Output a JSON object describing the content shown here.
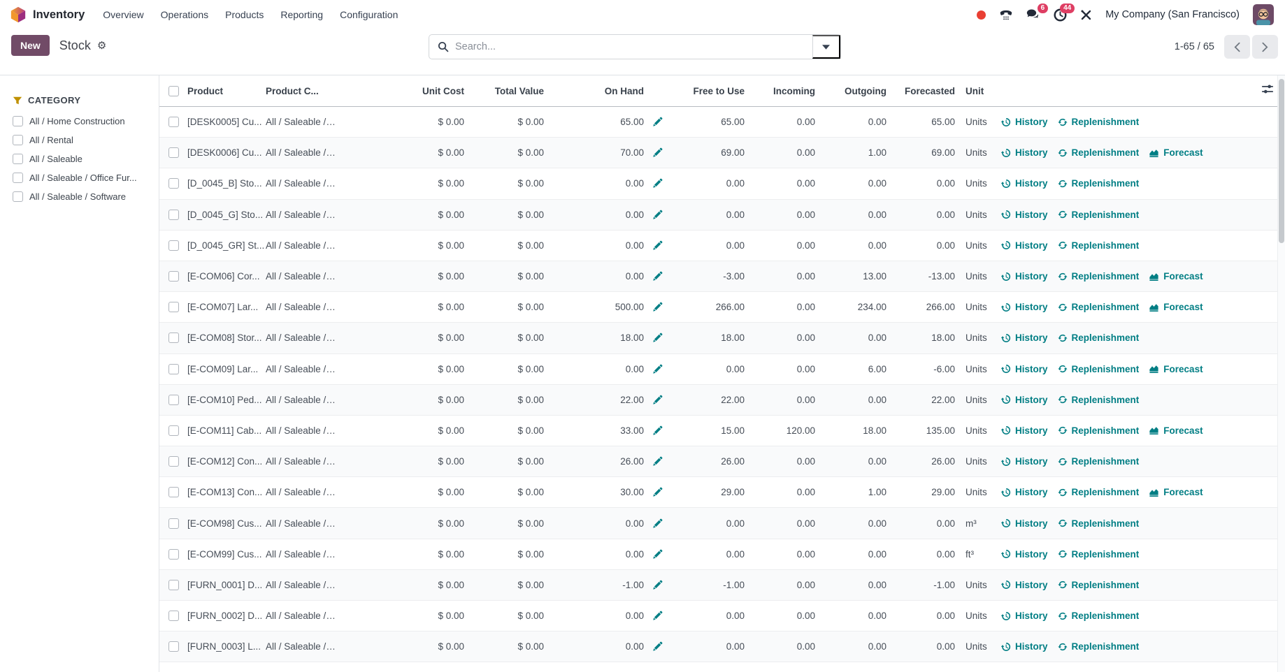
{
  "nav": {
    "app_name": "Inventory",
    "menus": [
      "Overview",
      "Operations",
      "Products",
      "Reporting",
      "Configuration"
    ],
    "company": "My Company (San Francisco)",
    "badges": {
      "messages": "6",
      "activities": "44"
    }
  },
  "control": {
    "new_label": "New",
    "title": "Stock",
    "search_placeholder": "Search...",
    "pager": "1-65 / 65"
  },
  "sidebar": {
    "title": "CATEGORY",
    "items": [
      "All / Home Construction",
      "All / Rental",
      "All / Saleable",
      "All / Saleable / Office Fur...",
      "All / Saleable / Software"
    ]
  },
  "table": {
    "headers": [
      "Product",
      "Product C...",
      "Unit Cost",
      "Total Value",
      "On Hand",
      "Free to Use",
      "Incoming",
      "Outgoing",
      "Forecasted",
      "Unit"
    ],
    "action_labels": {
      "history": "History",
      "replenishment": "Replenishment",
      "forecast": "Forecast"
    },
    "rows": [
      {
        "product": "[DESK0005] Cu...",
        "category": "All / Saleable / ...",
        "unit_cost": "$ 0.00",
        "total_value": "$ 0.00",
        "on_hand": "65.00",
        "free_to_use": "65.00",
        "incoming": "0.00",
        "outgoing": "0.00",
        "forecasted": "65.00",
        "unit": "Units",
        "forecast": false
      },
      {
        "product": "[DESK0006] Cu...",
        "category": "All / Saleable / ...",
        "unit_cost": "$ 0.00",
        "total_value": "$ 0.00",
        "on_hand": "70.00",
        "free_to_use": "69.00",
        "incoming": "0.00",
        "outgoing": "1.00",
        "forecasted": "69.00",
        "unit": "Units",
        "forecast": true
      },
      {
        "product": "[D_0045_B] Sto...",
        "category": "All / Saleable / ...",
        "unit_cost": "$ 0.00",
        "total_value": "$ 0.00",
        "on_hand": "0.00",
        "free_to_use": "0.00",
        "incoming": "0.00",
        "outgoing": "0.00",
        "forecasted": "0.00",
        "unit": "Units",
        "forecast": false
      },
      {
        "product": "[D_0045_G] Sto...",
        "category": "All / Saleable / ...",
        "unit_cost": "$ 0.00",
        "total_value": "$ 0.00",
        "on_hand": "0.00",
        "free_to_use": "0.00",
        "incoming": "0.00",
        "outgoing": "0.00",
        "forecasted": "0.00",
        "unit": "Units",
        "forecast": false
      },
      {
        "product": "[D_0045_GR] St...",
        "category": "All / Saleable / ...",
        "unit_cost": "$ 0.00",
        "total_value": "$ 0.00",
        "on_hand": "0.00",
        "free_to_use": "0.00",
        "incoming": "0.00",
        "outgoing": "0.00",
        "forecasted": "0.00",
        "unit": "Units",
        "forecast": false
      },
      {
        "product": "[E-COM06] Cor...",
        "category": "All / Saleable / ...",
        "unit_cost": "$ 0.00",
        "total_value": "$ 0.00",
        "on_hand": "0.00",
        "free_to_use": "-3.00",
        "incoming": "0.00",
        "outgoing": "13.00",
        "forecasted": "-13.00",
        "unit": "Units",
        "forecast": true
      },
      {
        "product": "[E-COM07] Lar...",
        "category": "All / Saleable / ...",
        "unit_cost": "$ 0.00",
        "total_value": "$ 0.00",
        "on_hand": "500.00",
        "free_to_use": "266.00",
        "incoming": "0.00",
        "outgoing": "234.00",
        "forecasted": "266.00",
        "unit": "Units",
        "forecast": true
      },
      {
        "product": "[E-COM08] Stor...",
        "category": "All / Saleable / ...",
        "unit_cost": "$ 0.00",
        "total_value": "$ 0.00",
        "on_hand": "18.00",
        "free_to_use": "18.00",
        "incoming": "0.00",
        "outgoing": "0.00",
        "forecasted": "18.00",
        "unit": "Units",
        "forecast": false
      },
      {
        "product": "[E-COM09] Lar...",
        "category": "All / Saleable / ...",
        "unit_cost": "$ 0.00",
        "total_value": "$ 0.00",
        "on_hand": "0.00",
        "free_to_use": "0.00",
        "incoming": "0.00",
        "outgoing": "6.00",
        "forecasted": "-6.00",
        "unit": "Units",
        "forecast": true
      },
      {
        "product": "[E-COM10] Ped...",
        "category": "All / Saleable / ...",
        "unit_cost": "$ 0.00",
        "total_value": "$ 0.00",
        "on_hand": "22.00",
        "free_to_use": "22.00",
        "incoming": "0.00",
        "outgoing": "0.00",
        "forecasted": "22.00",
        "unit": "Units",
        "forecast": false
      },
      {
        "product": "[E-COM11] Cab...",
        "category": "All / Saleable / ...",
        "unit_cost": "$ 0.00",
        "total_value": "$ 0.00",
        "on_hand": "33.00",
        "free_to_use": "15.00",
        "incoming": "120.00",
        "outgoing": "18.00",
        "forecasted": "135.00",
        "unit": "Units",
        "forecast": true
      },
      {
        "product": "[E-COM12] Con...",
        "category": "All / Saleable / ...",
        "unit_cost": "$ 0.00",
        "total_value": "$ 0.00",
        "on_hand": "26.00",
        "free_to_use": "26.00",
        "incoming": "0.00",
        "outgoing": "0.00",
        "forecasted": "26.00",
        "unit": "Units",
        "forecast": false
      },
      {
        "product": "[E-COM13] Con...",
        "category": "All / Saleable / ...",
        "unit_cost": "$ 0.00",
        "total_value": "$ 0.00",
        "on_hand": "30.00",
        "free_to_use": "29.00",
        "incoming": "0.00",
        "outgoing": "1.00",
        "forecasted": "29.00",
        "unit": "Units",
        "forecast": true
      },
      {
        "product": "[E-COM98] Cus...",
        "category": "All / Saleable / ...",
        "unit_cost": "$ 0.00",
        "total_value": "$ 0.00",
        "on_hand": "0.00",
        "free_to_use": "0.00",
        "incoming": "0.00",
        "outgoing": "0.00",
        "forecasted": "0.00",
        "unit": "m³",
        "forecast": false
      },
      {
        "product": "[E-COM99] Cus...",
        "category": "All / Saleable / ...",
        "unit_cost": "$ 0.00",
        "total_value": "$ 0.00",
        "on_hand": "0.00",
        "free_to_use": "0.00",
        "incoming": "0.00",
        "outgoing": "0.00",
        "forecasted": "0.00",
        "unit": "ft³",
        "forecast": false
      },
      {
        "product": "[FURN_0001] D...",
        "category": "All / Saleable / ...",
        "unit_cost": "$ 0.00",
        "total_value": "$ 0.00",
        "on_hand": "-1.00",
        "free_to_use": "-1.00",
        "incoming": "0.00",
        "outgoing": "0.00",
        "forecasted": "-1.00",
        "unit": "Units",
        "forecast": false
      },
      {
        "product": "[FURN_0002] D...",
        "category": "All / Saleable / ...",
        "unit_cost": "$ 0.00",
        "total_value": "$ 0.00",
        "on_hand": "0.00",
        "free_to_use": "0.00",
        "incoming": "0.00",
        "outgoing": "0.00",
        "forecasted": "0.00",
        "unit": "Units",
        "forecast": false
      },
      {
        "product": "[FURN_0003] L...",
        "category": "All / Saleable / ...",
        "unit_cost": "$ 0.00",
        "total_value": "$ 0.00",
        "on_hand": "0.00",
        "free_to_use": "0.00",
        "incoming": "0.00",
        "outgoing": "0.00",
        "forecasted": "0.00",
        "unit": "Units",
        "forecast": false
      }
    ]
  },
  "colors": {
    "primary": "#714B67",
    "accent_teal": "#017E84",
    "badge_red": "#de3e63",
    "status_dot_red": "#e93f33",
    "funnel_gold": "#bf9000"
  }
}
